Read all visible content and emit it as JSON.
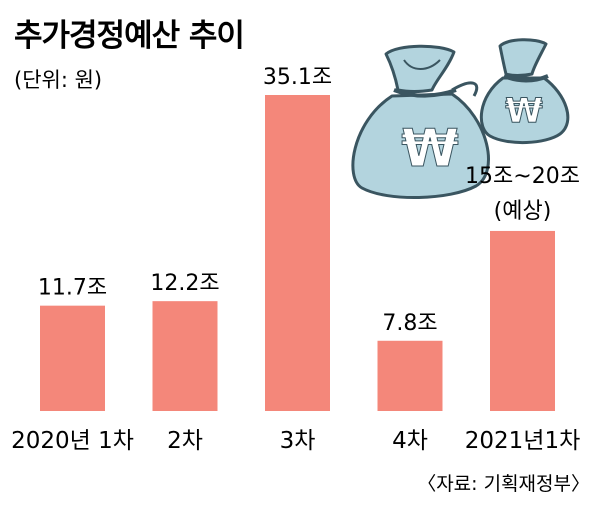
{
  "title": "추가경정예산 추이",
  "unit": "(단위: 원)",
  "source": "〈자료: 기획재정부〉",
  "colors": {
    "bar": "#f4877a",
    "text": "#231f20",
    "bag_fill": "#b3d4de",
    "bag_stroke": "#3a5560",
    "won_sign": "#ffffff"
  },
  "icons": [
    "money-bag-large-icon",
    "money-bag-small-icon"
  ],
  "chart_data": {
    "type": "bar",
    "categories": [
      "2020년 1차",
      "2차",
      "3차",
      "4차",
      "2021년1차"
    ],
    "values": [
      11.7,
      12.2,
      35.1,
      7.8,
      20
    ],
    "value_labels": [
      "11.7조",
      "12.2조",
      "35.1조",
      "7.8조",
      "15조~20조"
    ],
    "estimate_note": "(예상)",
    "ylim": [
      0,
      37
    ],
    "grid": false,
    "legend": "none"
  }
}
